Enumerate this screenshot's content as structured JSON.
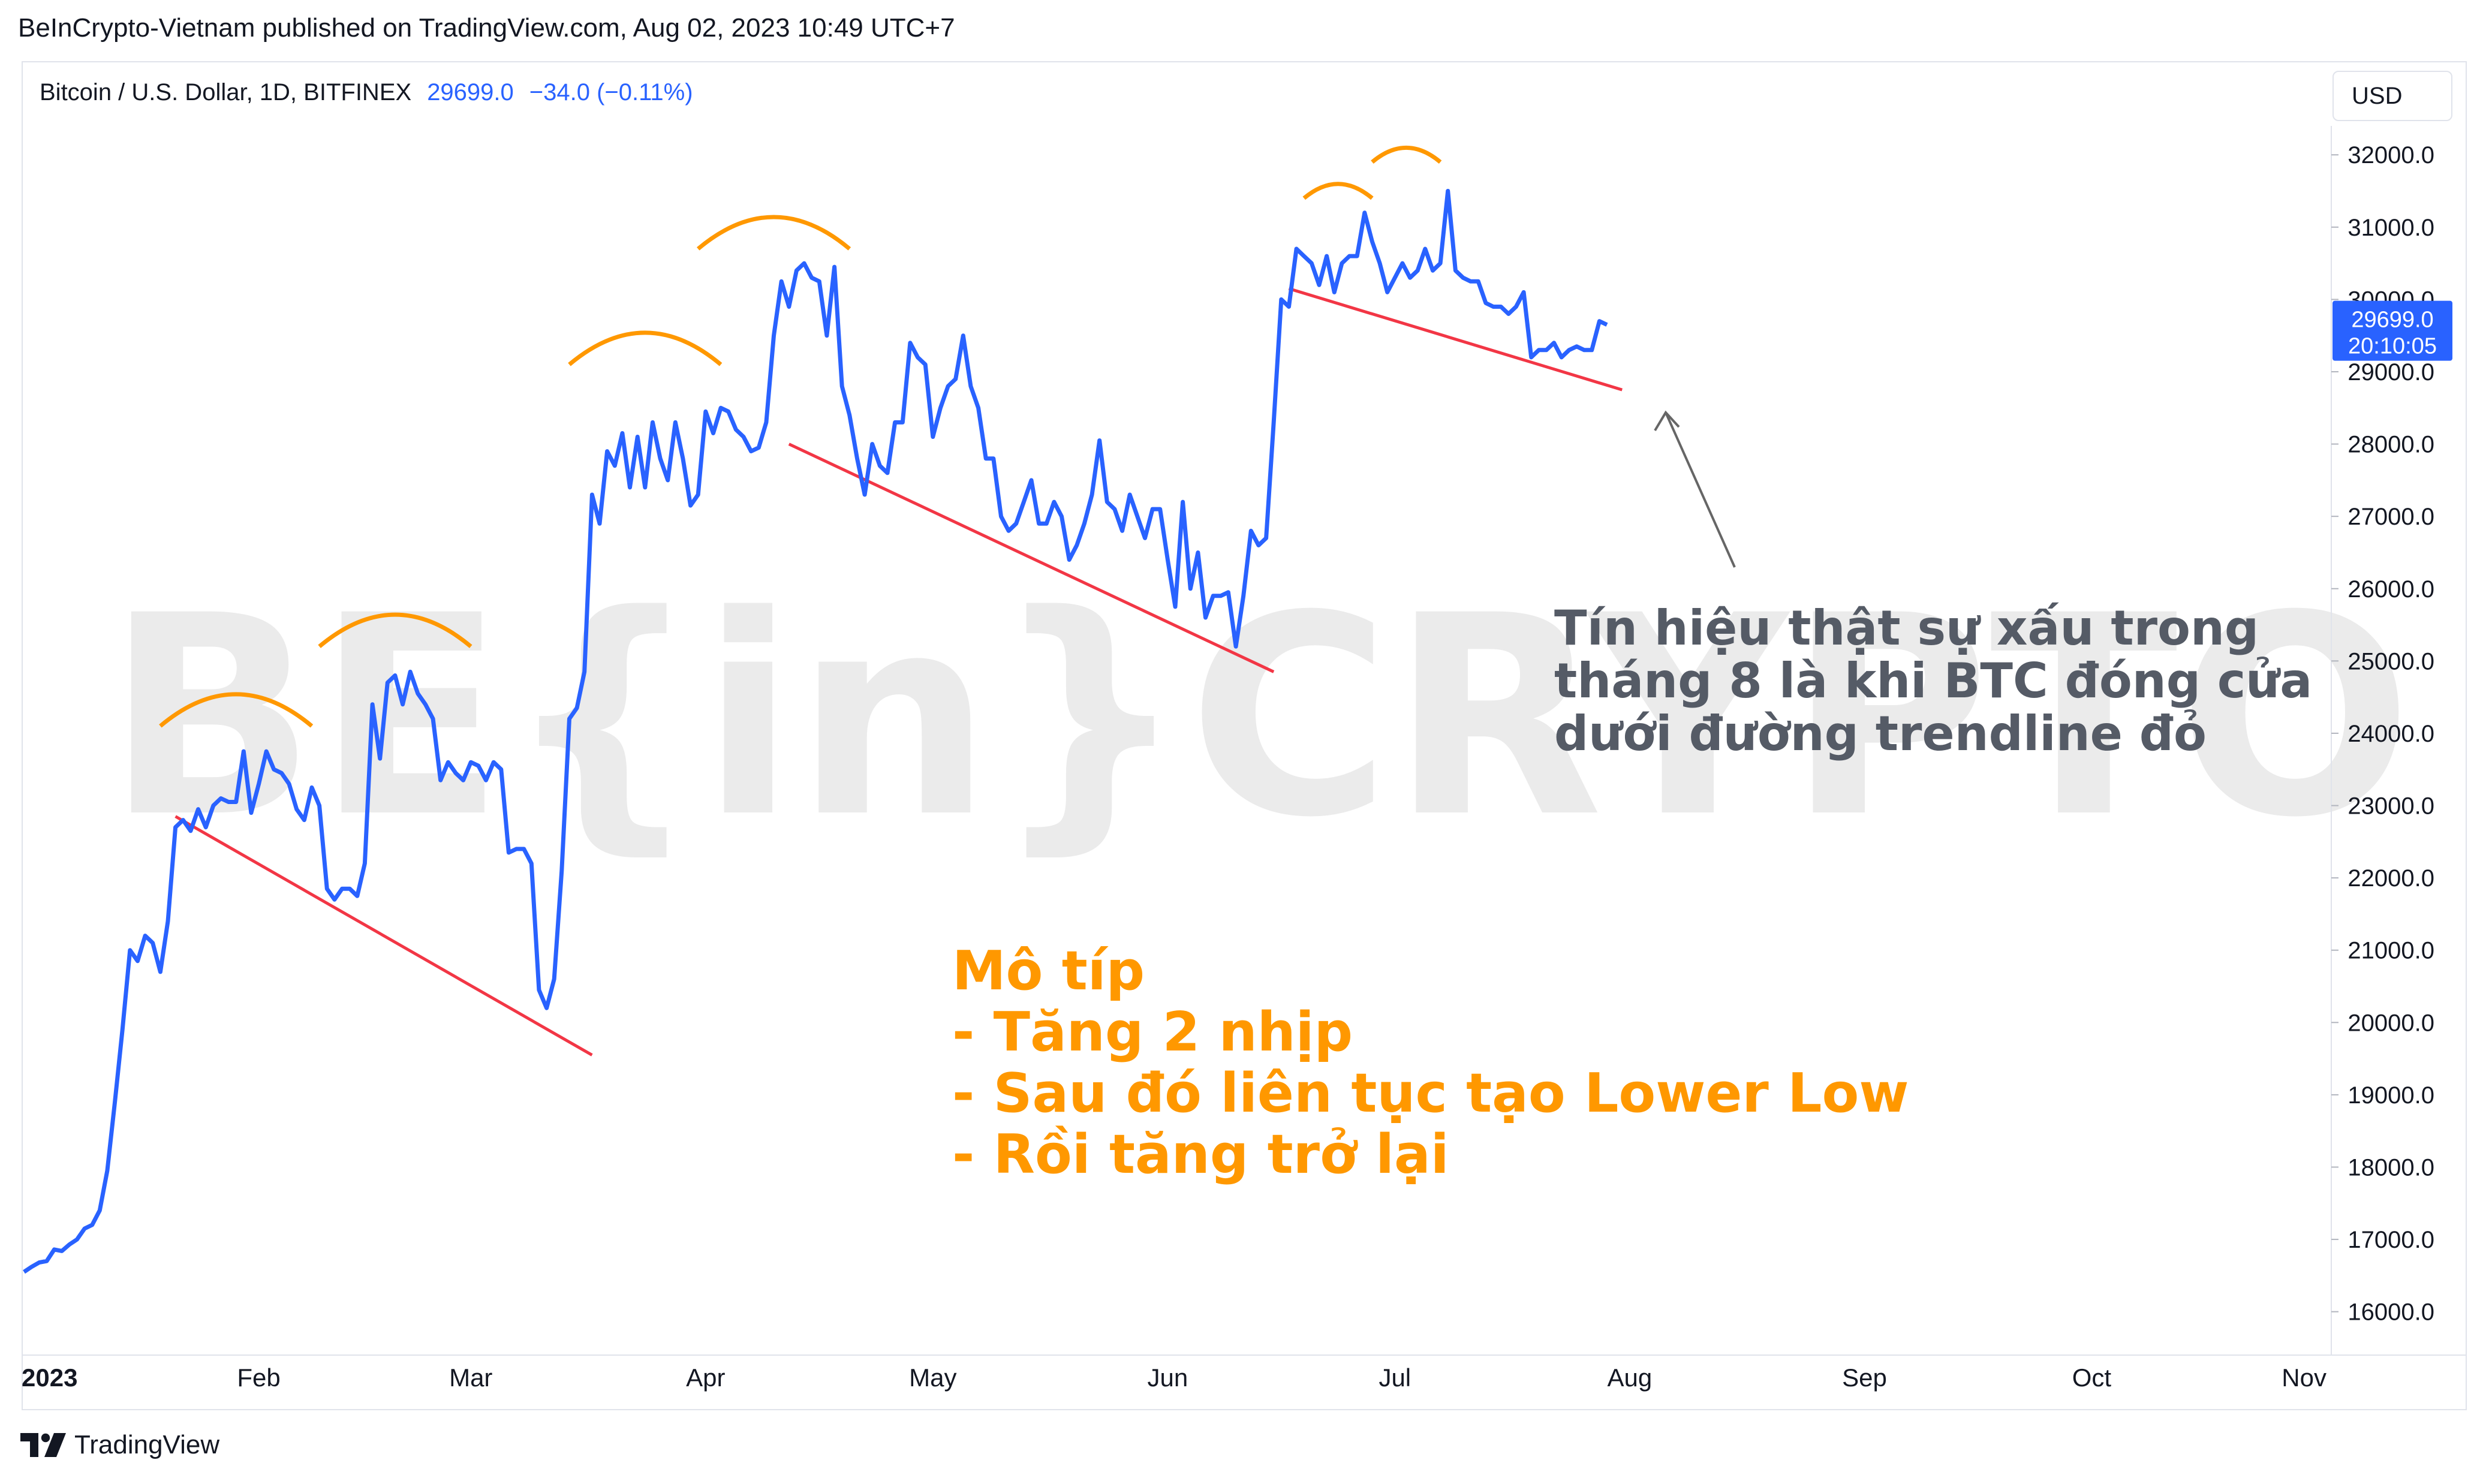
{
  "header": {
    "publish_info": "BeInCrypto-Vietnam published on TradingView.com, Aug 02, 2023 10:49 UTC+7"
  },
  "symbol": {
    "title": "Bitcoin / U.S. Dollar, 1D, BITFINEX",
    "price": "29699.0",
    "change": "−34.0 (−0.11%)"
  },
  "toolbar": {
    "currency_label": "USD"
  },
  "price_badge": {
    "price": "29699.0",
    "countdown": "20:10:05"
  },
  "watermark": "BE{in}CRYPTO",
  "annotations": {
    "signal_text": [
      "Tín hiệu thật sự xấu trong",
      "tháng 8 là khi BTC đóng cửa",
      "dưới đường trendline đỏ"
    ],
    "pattern_text": [
      "Mô típ",
      "- Tăng 2 nhịp",
      "- Sau đó liên tục tạo Lower Low",
      "- Rồi tăng trở lại"
    ]
  },
  "footer": {
    "brand": "TradingView"
  },
  "colors": {
    "price_line": "#2962ff",
    "trendline": "#f23645",
    "arc": "#ff9800",
    "pattern_text": "#ff9800",
    "signal_text": "#555b66",
    "watermark": "#ebebeb"
  },
  "chart_data": {
    "type": "line",
    "title": "Bitcoin / U.S. Dollar, 1D, BITFINEX",
    "xlabel": "",
    "ylabel": "",
    "x_ticks": [
      {
        "label": "2023",
        "day": 0
      },
      {
        "label": "Feb",
        "day": 31
      },
      {
        "label": "Mar",
        "day": 59
      },
      {
        "label": "Apr",
        "day": 90
      },
      {
        "label": "May",
        "day": 120
      },
      {
        "label": "Jun",
        "day": 151
      },
      {
        "label": "Jul",
        "day": 181
      },
      {
        "label": "Aug",
        "day": 212
      },
      {
        "label": "Sep",
        "day": 243
      },
      {
        "label": "Oct",
        "day": 273
      },
      {
        "label": "Nov",
        "day": 304
      }
    ],
    "y_ticks": [
      "16000.0",
      "17000.0",
      "18000.0",
      "19000.0",
      "20000.0",
      "21000.0",
      "22000.0",
      "23000.0",
      "24000.0",
      "25000.0",
      "26000.0",
      "27000.0",
      "28000.0",
      "29000.0",
      "30000.0",
      "31000.0",
      "32000.0"
    ],
    "xlim": [
      0,
      304
    ],
    "ylim": [
      15400,
      32400
    ],
    "grid": false,
    "series": [
      {
        "values": [
          [
            0,
            16550
          ],
          [
            1,
            16620
          ],
          [
            2,
            16680
          ],
          [
            3,
            16700
          ],
          [
            4,
            16860
          ],
          [
            5,
            16840
          ],
          [
            6,
            16930
          ],
          [
            7,
            17000
          ],
          [
            8,
            17150
          ],
          [
            9,
            17200
          ],
          [
            10,
            17400
          ],
          [
            11,
            17950
          ],
          [
            12,
            18900
          ],
          [
            13,
            19900
          ],
          [
            14,
            21000
          ],
          [
            15,
            20850
          ],
          [
            16,
            21200
          ],
          [
            17,
            21100
          ],
          [
            18,
            20700
          ],
          [
            19,
            21400
          ],
          [
            20,
            22700
          ],
          [
            21,
            22800
          ],
          [
            22,
            22650
          ],
          [
            23,
            22950
          ],
          [
            24,
            22700
          ],
          [
            25,
            23000
          ],
          [
            26,
            23100
          ],
          [
            27,
            23050
          ],
          [
            28,
            23050
          ],
          [
            29,
            23750
          ],
          [
            30,
            22900
          ],
          [
            31,
            23300
          ],
          [
            32,
            23750
          ],
          [
            33,
            23500
          ],
          [
            34,
            23450
          ],
          [
            35,
            23300
          ],
          [
            36,
            22950
          ],
          [
            37,
            22800
          ],
          [
            38,
            23250
          ],
          [
            39,
            23000
          ],
          [
            40,
            21850
          ],
          [
            41,
            21700
          ],
          [
            42,
            21850
          ],
          [
            43,
            21850
          ],
          [
            44,
            21750
          ],
          [
            45,
            22200
          ],
          [
            46,
            24400
          ],
          [
            47,
            23650
          ],
          [
            48,
            24700
          ],
          [
            49,
            24800
          ],
          [
            50,
            24400
          ],
          [
            51,
            24850
          ],
          [
            52,
            24550
          ],
          [
            53,
            24400
          ],
          [
            54,
            24200
          ],
          [
            55,
            23350
          ],
          [
            56,
            23600
          ],
          [
            57,
            23450
          ],
          [
            58,
            23350
          ],
          [
            59,
            23600
          ],
          [
            60,
            23550
          ],
          [
            61,
            23350
          ],
          [
            62,
            23600
          ],
          [
            63,
            23500
          ],
          [
            64,
            22350
          ],
          [
            65,
            22400
          ],
          [
            66,
            22400
          ],
          [
            67,
            22200
          ],
          [
            68,
            20450
          ],
          [
            69,
            20200
          ],
          [
            70,
            20600
          ],
          [
            71,
            22100
          ],
          [
            72,
            24200
          ],
          [
            73,
            24350
          ],
          [
            74,
            24850
          ],
          [
            75,
            27300
          ],
          [
            76,
            26900
          ],
          [
            77,
            27900
          ],
          [
            78,
            27700
          ],
          [
            79,
            28150
          ],
          [
            80,
            27400
          ],
          [
            81,
            28100
          ],
          [
            82,
            27400
          ],
          [
            83,
            28300
          ],
          [
            84,
            27800
          ],
          [
            85,
            27500
          ],
          [
            86,
            28300
          ],
          [
            87,
            27800
          ],
          [
            88,
            27150
          ],
          [
            89,
            27300
          ],
          [
            90,
            28450
          ],
          [
            91,
            28150
          ],
          [
            92,
            28500
          ],
          [
            93,
            28450
          ],
          [
            94,
            28200
          ],
          [
            95,
            28100
          ],
          [
            96,
            27900
          ],
          [
            97,
            27950
          ],
          [
            98,
            28300
          ],
          [
            99,
            29500
          ],
          [
            100,
            30250
          ],
          [
            101,
            29900
          ],
          [
            102,
            30400
          ],
          [
            103,
            30500
          ],
          [
            104,
            30300
          ],
          [
            105,
            30250
          ],
          [
            106,
            29500
          ],
          [
            107,
            30450
          ],
          [
            108,
            28800
          ],
          [
            109,
            28400
          ],
          [
            110,
            27800
          ],
          [
            111,
            27300
          ],
          [
            112,
            28000
          ],
          [
            113,
            27700
          ],
          [
            114,
            27600
          ],
          [
            115,
            28300
          ],
          [
            116,
            28300
          ],
          [
            117,
            29400
          ],
          [
            118,
            29200
          ],
          [
            119,
            29100
          ],
          [
            120,
            28100
          ],
          [
            121,
            28500
          ],
          [
            122,
            28800
          ],
          [
            123,
            28900
          ],
          [
            124,
            29500
          ],
          [
            125,
            28800
          ],
          [
            126,
            28500
          ],
          [
            127,
            27800
          ],
          [
            128,
            27800
          ],
          [
            129,
            27000
          ],
          [
            130,
            26800
          ],
          [
            131,
            26900
          ],
          [
            132,
            27200
          ],
          [
            133,
            27500
          ],
          [
            134,
            26900
          ],
          [
            135,
            26900
          ],
          [
            136,
            27200
          ],
          [
            137,
            27000
          ],
          [
            138,
            26400
          ],
          [
            139,
            26600
          ],
          [
            140,
            26900
          ],
          [
            141,
            27300
          ],
          [
            142,
            28050
          ],
          [
            143,
            27200
          ],
          [
            144,
            27100
          ],
          [
            145,
            26800
          ],
          [
            146,
            27300
          ],
          [
            147,
            27000
          ],
          [
            148,
            26700
          ],
          [
            149,
            27100
          ],
          [
            150,
            27100
          ],
          [
            151,
            26400
          ],
          [
            152,
            25750
          ],
          [
            153,
            27200
          ],
          [
            154,
            26000
          ],
          [
            155,
            26500
          ],
          [
            156,
            25600
          ],
          [
            157,
            25900
          ],
          [
            158,
            25900
          ],
          [
            159,
            25950
          ],
          [
            160,
            25200
          ],
          [
            161,
            25900
          ],
          [
            162,
            26800
          ],
          [
            163,
            26600
          ],
          [
            164,
            26700
          ],
          [
            165,
            28300
          ],
          [
            166,
            30000
          ],
          [
            167,
            29900
          ],
          [
            168,
            30700
          ],
          [
            169,
            30600
          ],
          [
            170,
            30500
          ],
          [
            171,
            30200
          ],
          [
            172,
            30600
          ],
          [
            173,
            30100
          ],
          [
            174,
            30500
          ],
          [
            175,
            30600
          ],
          [
            176,
            30600
          ],
          [
            177,
            31200
          ],
          [
            178,
            30800
          ],
          [
            179,
            30500
          ],
          [
            180,
            30100
          ],
          [
            181,
            30300
          ],
          [
            182,
            30500
          ],
          [
            183,
            30300
          ],
          [
            184,
            30400
          ],
          [
            185,
            30700
          ],
          [
            186,
            30400
          ],
          [
            187,
            30500
          ],
          [
            188,
            31500
          ],
          [
            189,
            30400
          ],
          [
            190,
            30300
          ],
          [
            191,
            30250
          ],
          [
            192,
            30250
          ],
          [
            193,
            29950
          ],
          [
            194,
            29900
          ],
          [
            195,
            29900
          ],
          [
            196,
            29800
          ],
          [
            197,
            29900
          ],
          [
            198,
            30100
          ],
          [
            199,
            29200
          ],
          [
            200,
            29300
          ],
          [
            201,
            29300
          ],
          [
            202,
            29400
          ],
          [
            203,
            29200
          ],
          [
            204,
            29300
          ],
          [
            205,
            29350
          ],
          [
            206,
            29300
          ],
          [
            207,
            29300
          ],
          [
            208,
            29700
          ],
          [
            209,
            29650
          ]
        ]
      }
    ]
  }
}
